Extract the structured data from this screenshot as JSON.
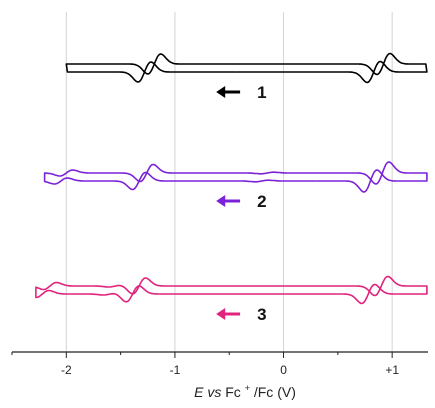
{
  "chart_data": {
    "type": "line",
    "title": "",
    "xlabel_parts": {
      "italic": "E",
      "vs": " vs",
      "pre": " Fc",
      "sup": "+",
      "post": "/Fc (V)"
    },
    "ylabel": "",
    "xlim": [
      -2.5,
      1.33
    ],
    "x_ticks": [
      -2,
      -1,
      0,
      1
    ],
    "x_tick_labels": [
      "-2",
      "-1",
      "0",
      "+1"
    ],
    "grid": "vertical",
    "legend": "none",
    "scan_direction": "negative",
    "series": [
      {
        "label": "1",
        "color": "#000000",
        "start": -0.45,
        "switch": -2.0,
        "end": 1.32,
        "baseline": 0.0,
        "peaks": [
          {
            "cathodic": -1.28,
            "anodic": -1.19,
            "height": 1.0
          },
          {
            "cathodic": 0.83,
            "anodic": 0.92,
            "height": 1.05
          }
        ]
      },
      {
        "label": "2",
        "color": "#7b22d8",
        "start": 0.3,
        "switch": -2.2,
        "end": 1.32,
        "baseline": 0.0,
        "peaks": [
          {
            "cathodic": -1.33,
            "anodic": -1.26,
            "height": 0.85
          },
          {
            "cathodic": 0.8,
            "anodic": 0.91,
            "height": 1.1
          },
          {
            "cathodic": -2.05,
            "anodic": -2.0,
            "height": 0.3
          },
          {
            "cathodic": -0.2,
            "anodic": -0.15,
            "height": 0.08
          }
        ]
      },
      {
        "label": "3",
        "color": "#e0237d",
        "start": 0.5,
        "switch": -2.28,
        "end": 1.32,
        "baseline": 0.0,
        "peaks": [
          {
            "cathodic": -1.39,
            "anodic": -1.33,
            "height": 0.8
          },
          {
            "cathodic": 0.78,
            "anodic": 0.9,
            "height": 0.95
          },
          {
            "cathodic": -2.22,
            "anodic": -2.15,
            "height": 0.35
          },
          {
            "cathodic": -1.6,
            "anodic": -1.55,
            "height": 0.1
          }
        ]
      }
    ]
  }
}
